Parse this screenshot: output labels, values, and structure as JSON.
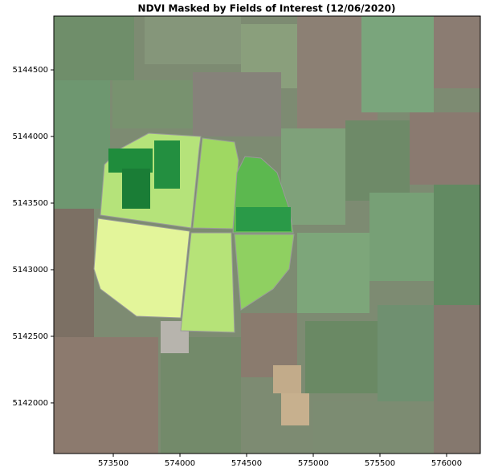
{
  "chart_data": {
    "type": "image",
    "title": "NDVI Masked by Fields of Interest (12/06/2020)",
    "xlim": [
      573054,
      576253
    ],
    "ylim": [
      5141620,
      5144904
    ],
    "xticks": [
      573500,
      574000,
      574500,
      575000,
      575500,
      576000
    ],
    "yticks": [
      5142000,
      5142500,
      5143000,
      5143500,
      5144000,
      5144500
    ]
  }
}
